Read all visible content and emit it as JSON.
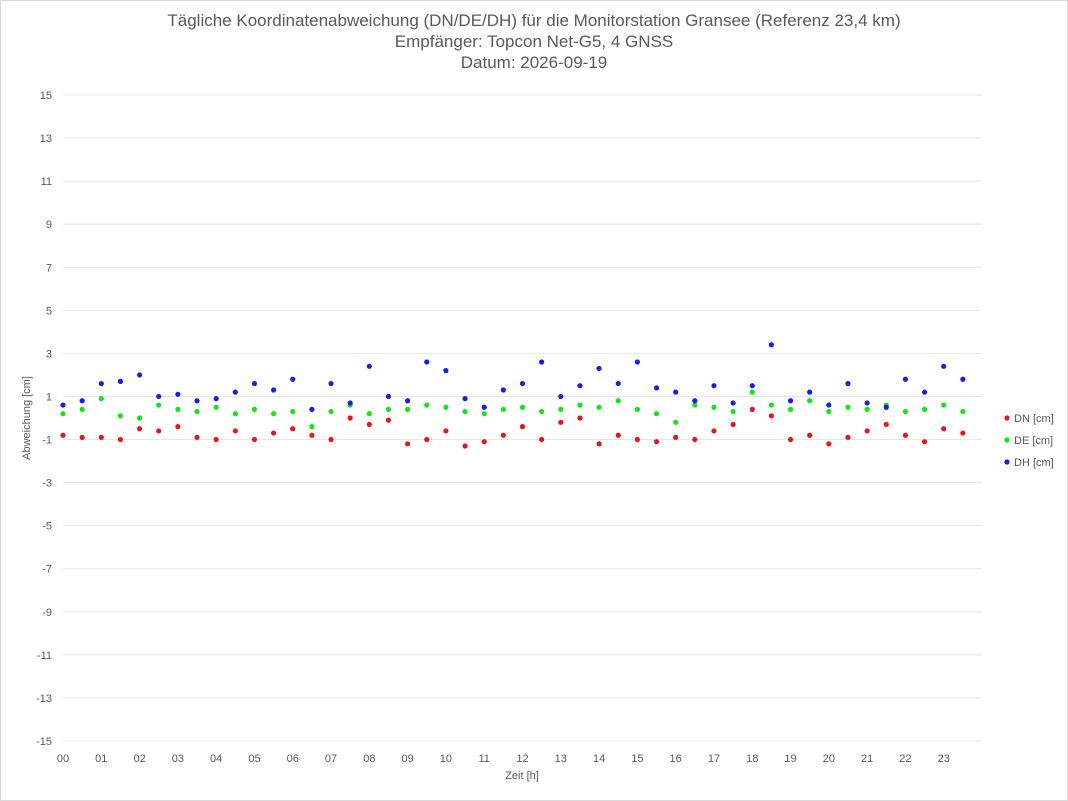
{
  "chart_data": {
    "type": "scatter",
    "title": "Tägliche Koordinatenabweichung (DN/DE/DH) für die Monitorstation Gransee (Referenz 23,4 km)",
    "subtitle": "Empfänger: Topcon Net-G5, 4 GNSS",
    "date_line": "Datum: 2026-09-19",
    "xlabel": "Zeit [h]",
    "ylabel": "Abweichung [cm]",
    "xlim": [
      0,
      24
    ],
    "ylim": [
      -15,
      15
    ],
    "x_ticks": [
      "00",
      "01",
      "02",
      "03",
      "04",
      "05",
      "06",
      "07",
      "08",
      "09",
      "10",
      "11",
      "12",
      "13",
      "14",
      "15",
      "16",
      "17",
      "18",
      "19",
      "20",
      "21",
      "22",
      "23"
    ],
    "y_ticks": [
      15,
      13,
      11,
      9,
      7,
      5,
      3,
      1,
      -1,
      -3,
      -5,
      -7,
      -9,
      -11,
      -13,
      -15
    ],
    "grid": true,
    "legend_position": "right",
    "series": [
      {
        "name": "DN [cm]",
        "color": "#e8141b",
        "x": [
          0.0,
          0.5,
          1.0,
          1.5,
          2.0,
          2.5,
          3.0,
          3.5,
          4.0,
          4.5,
          5.0,
          5.5,
          6.0,
          6.5,
          7.0,
          7.5,
          8.0,
          8.5,
          9.0,
          9.5,
          10.0,
          10.5,
          11.0,
          11.5,
          12.0,
          12.5,
          13.0,
          13.5,
          14.0,
          14.5,
          15.0,
          15.5,
          16.0,
          16.5,
          17.0,
          17.5,
          18.0,
          18.5,
          19.0,
          19.5,
          20.0,
          20.5,
          21.0,
          21.5,
          22.0,
          22.5,
          23.0,
          23.5
        ],
        "y": [
          -0.8,
          -0.9,
          -0.9,
          -1.0,
          -0.5,
          -0.6,
          -0.4,
          -0.9,
          -1.0,
          -0.6,
          -1.0,
          -0.7,
          -0.5,
          -0.8,
          -1.0,
          0.0,
          -0.3,
          -0.1,
          -1.2,
          -1.0,
          -0.6,
          -1.3,
          -1.1,
          -0.8,
          -0.4,
          -1.0,
          -0.2,
          0.0,
          -1.2,
          -0.8,
          -1.0,
          -1.1,
          -0.9,
          -1.0,
          -0.6,
          -0.3,
          0.4,
          0.1,
          -1.0,
          -0.8,
          -1.2,
          -0.9,
          -0.6,
          -0.3,
          -0.8,
          -1.1,
          -0.5,
          -0.7
        ]
      },
      {
        "name": "DE [cm]",
        "color": "#14e514",
        "x": [
          0.0,
          0.5,
          1.0,
          1.5,
          2.0,
          2.5,
          3.0,
          3.5,
          4.0,
          4.5,
          5.0,
          5.5,
          6.0,
          6.5,
          7.0,
          7.5,
          8.0,
          8.5,
          9.0,
          9.5,
          10.0,
          10.5,
          11.0,
          11.5,
          12.0,
          12.5,
          13.0,
          13.5,
          14.0,
          14.5,
          15.0,
          15.5,
          16.0,
          16.5,
          17.0,
          17.5,
          18.0,
          18.5,
          19.0,
          19.5,
          20.0,
          20.5,
          21.0,
          21.5,
          22.0,
          22.5,
          23.0,
          23.5
        ],
        "y": [
          0.2,
          0.4,
          0.9,
          0.1,
          0.0,
          0.6,
          0.4,
          0.3,
          0.5,
          0.2,
          0.4,
          0.2,
          0.3,
          -0.4,
          0.3,
          0.6,
          0.2,
          0.4,
          0.4,
          0.6,
          0.5,
          0.3,
          0.2,
          0.4,
          0.5,
          0.3,
          0.4,
          0.6,
          0.5,
          0.8,
          0.4,
          0.2,
          -0.2,
          0.6,
          0.5,
          0.3,
          1.2,
          0.6,
          0.4,
          0.8,
          0.3,
          0.5,
          0.4,
          0.6,
          0.3,
          0.4,
          0.6,
          0.3
        ]
      },
      {
        "name": "DH [cm]",
        "color": "#141ee5",
        "x": [
          0.0,
          0.5,
          1.0,
          1.5,
          2.0,
          2.5,
          3.0,
          3.5,
          4.0,
          4.5,
          5.0,
          5.5,
          6.0,
          6.5,
          7.0,
          7.5,
          8.0,
          8.5,
          9.0,
          9.5,
          10.0,
          10.5,
          11.0,
          11.5,
          12.0,
          12.5,
          13.0,
          13.5,
          14.0,
          14.5,
          15.0,
          15.5,
          16.0,
          16.5,
          17.0,
          17.5,
          18.0,
          18.5,
          19.0,
          19.5,
          20.0,
          20.5,
          21.0,
          21.5,
          22.0,
          22.5,
          23.0,
          23.5
        ],
        "y": [
          0.6,
          0.8,
          1.6,
          1.7,
          2.0,
          1.0,
          1.1,
          0.8,
          0.9,
          1.2,
          1.6,
          1.3,
          1.8,
          0.4,
          1.6,
          0.7,
          2.4,
          1.0,
          0.8,
          2.6,
          2.2,
          0.9,
          0.5,
          1.3,
          1.6,
          2.6,
          1.0,
          1.5,
          2.3,
          1.6,
          2.6,
          1.4,
          1.2,
          0.8,
          1.5,
          0.7,
          1.5,
          3.4,
          0.8,
          1.2,
          0.6,
          1.6,
          0.7,
          0.5,
          1.8,
          1.2,
          2.4,
          1.8
        ]
      }
    ]
  }
}
